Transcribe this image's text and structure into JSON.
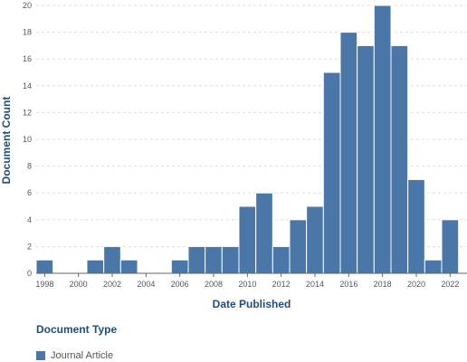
{
  "chart_data": {
    "type": "bar",
    "title": "",
    "xlabel": "Date Published",
    "ylabel": "Document Count",
    "x_tick_labels": [
      "1998",
      "2000",
      "2002",
      "2004",
      "2006",
      "2008",
      "2010",
      "2012",
      "2014",
      "2016",
      "2018",
      "2020",
      "2022"
    ],
    "y_tick_labels": [
      "0",
      "2",
      "4",
      "6",
      "8",
      "10",
      "12",
      "14",
      "16",
      "18",
      "20"
    ],
    "ylim": [
      0,
      20
    ],
    "xlim": [
      1997.5,
      2023
    ],
    "grid": true,
    "legend_position": "bottom-left",
    "colors": {
      "bar": "#4a76a8",
      "axis_title": "#1f4e79"
    },
    "series": [
      {
        "name": "Journal Article",
        "x": [
          1998,
          1999,
          2000,
          2001,
          2002,
          2003,
          2004,
          2005,
          2006,
          2007,
          2008,
          2009,
          2010,
          2011,
          2012,
          2013,
          2014,
          2015,
          2016,
          2017,
          2018,
          2019,
          2020,
          2021,
          2022
        ],
        "values": [
          1,
          0,
          0,
          1,
          2,
          1,
          0,
          0,
          1,
          2,
          2,
          2,
          5,
          6,
          2,
          4,
          5,
          15,
          18,
          17,
          20,
          17,
          7,
          1,
          4
        ]
      }
    ]
  },
  "legend": {
    "title": "Document Type",
    "items": [
      {
        "label": "Journal Article",
        "color": "#4a76a8"
      }
    ]
  }
}
